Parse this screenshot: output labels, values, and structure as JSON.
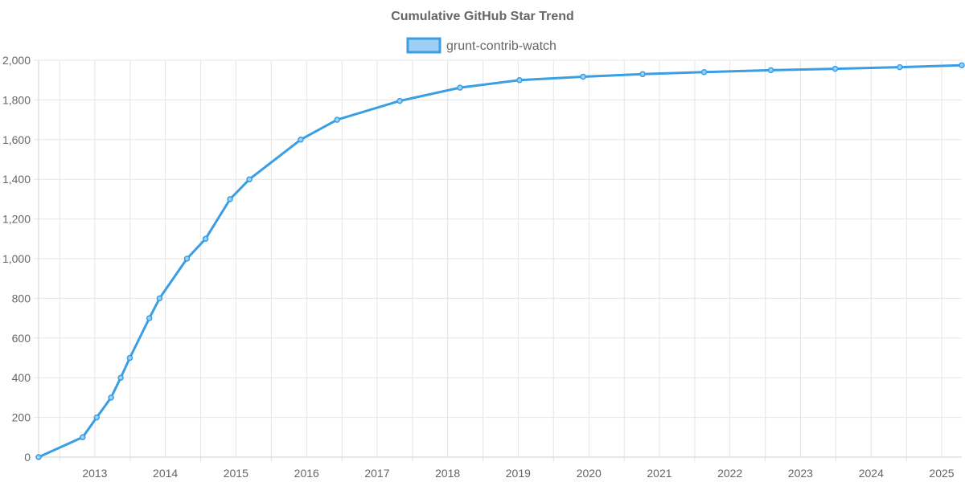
{
  "chart_data": {
    "type": "line",
    "title": "Cumulative GitHub Star Trend",
    "xlabel": "",
    "ylabel": "",
    "x_tick_labels": [
      "2013",
      "2014",
      "2015",
      "2016",
      "2017",
      "2018",
      "2019",
      "2020",
      "2021",
      "2022",
      "2023",
      "2024",
      "2025"
    ],
    "y_tick_labels": [
      "0",
      "200",
      "400",
      "600",
      "800",
      "1,000",
      "1,200",
      "1,400",
      "1,600",
      "1,800",
      "2,000"
    ],
    "ylim": [
      0,
      2000
    ],
    "xlim": [
      "2012-09-14",
      "2025-10-14"
    ],
    "grid": true,
    "legend_position": "top",
    "series": [
      {
        "name": "grunt-contrib-watch",
        "color": "#3a9ee4",
        "fill": "#9ed0f5",
        "points": [
          {
            "x": "2012-09-14",
            "y": 0
          },
          {
            "x": "2013-04-30",
            "y": 100
          },
          {
            "x": "2013-07-12",
            "y": 200
          },
          {
            "x": "2013-09-24",
            "y": 300
          },
          {
            "x": "2013-11-13",
            "y": 400
          },
          {
            "x": "2013-12-30",
            "y": 500
          },
          {
            "x": "2014-04-10",
            "y": 700
          },
          {
            "x": "2014-06-02",
            "y": 800
          },
          {
            "x": "2014-10-22",
            "y": 1000
          },
          {
            "x": "2015-01-26",
            "y": 1100
          },
          {
            "x": "2015-06-02",
            "y": 1300
          },
          {
            "x": "2015-09-10",
            "y": 1400
          },
          {
            "x": "2016-06-02",
            "y": 1600
          },
          {
            "x": "2016-12-07",
            "y": 1700
          },
          {
            "x": "2017-10-27",
            "y": 1795
          },
          {
            "x": "2018-09-04",
            "y": 1862
          },
          {
            "x": "2019-07-09",
            "y": 1900
          },
          {
            "x": "2020-06-02",
            "y": 1917
          },
          {
            "x": "2021-04-06",
            "y": 1930
          },
          {
            "x": "2022-02-18",
            "y": 1940
          },
          {
            "x": "2023-01-30",
            "y": 1950
          },
          {
            "x": "2023-12-29",
            "y": 1957
          },
          {
            "x": "2024-11-27",
            "y": 1965
          },
          {
            "x": "2025-10-14",
            "y": 1975
          }
        ]
      }
    ]
  }
}
